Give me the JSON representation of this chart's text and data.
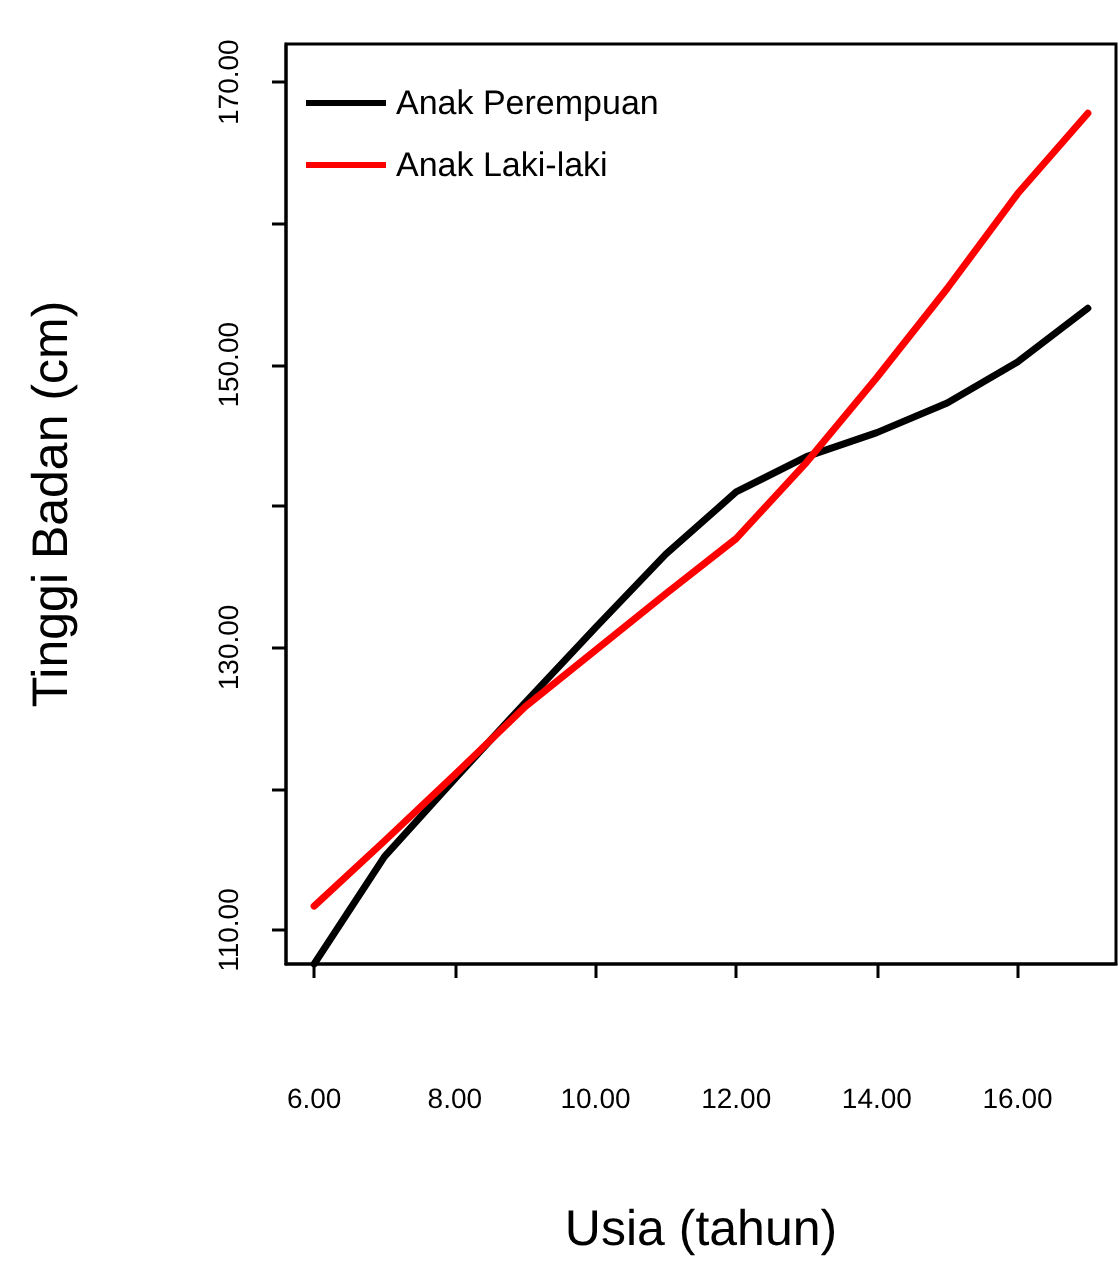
{
  "chart_data": {
    "type": "line",
    "xlabel": "Usia (tahun)",
    "ylabel": "Tinggi Badan (cm)",
    "x": [
      6,
      7,
      8,
      9,
      10,
      11,
      12,
      13,
      14,
      15,
      16,
      17
    ],
    "series": [
      {
        "name": "Anak Perempuan",
        "color": "#000000",
        "values": [
          107.6,
          115.2,
          120.7,
          126.1,
          131.4,
          136.6,
          141.0,
          143.5,
          145.2,
          147.3,
          150.2,
          154.0
        ]
      },
      {
        "name": "Anak Laki-laki",
        "color": "#ff0000",
        "values": [
          111.7,
          116.3,
          121.0,
          125.8,
          129.8,
          133.8,
          137.7,
          143.1,
          149.1,
          155.4,
          162.1,
          167.8
        ]
      }
    ],
    "xlim": [
      5.6,
      17.4
    ],
    "ylim": [
      107.6,
      172.7
    ],
    "xticks": [
      {
        "value": 6,
        "label": "6.00"
      },
      {
        "value": 8,
        "label": "8.00"
      },
      {
        "value": 10,
        "label": "10.00"
      },
      {
        "value": 12,
        "label": "12.00"
      },
      {
        "value": 14,
        "label": "14.00"
      },
      {
        "value": 16,
        "label": "16.00"
      }
    ],
    "yticks": [
      {
        "value": 110,
        "label": "110.00"
      },
      {
        "value": 120,
        "label": null
      },
      {
        "value": 130,
        "label": "130.00"
      },
      {
        "value": 140,
        "label": null
      },
      {
        "value": 150,
        "label": "150.00"
      },
      {
        "value": 160,
        "label": null
      },
      {
        "value": 170,
        "label": "170.00"
      }
    ],
    "grid": false,
    "legend": "top left",
    "marker": "none",
    "line_style": "solid"
  }
}
